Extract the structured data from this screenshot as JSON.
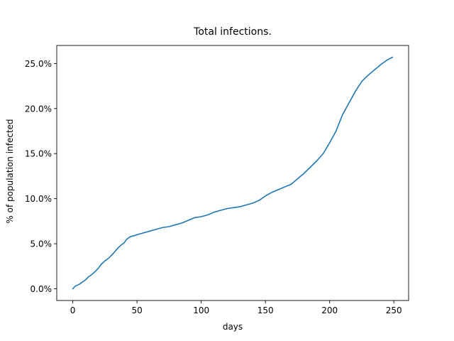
{
  "chart_data": {
    "type": "line",
    "title": "Total infections.",
    "xlabel": "days",
    "ylabel": "% of population infected",
    "xlim": [
      -12.5,
      261.5
    ],
    "ylim": [
      -1.3,
      27.0
    ],
    "xticks": [
      0,
      50,
      100,
      150,
      200,
      250
    ],
    "xtick_labels": [
      "0",
      "50",
      "100",
      "150",
      "200",
      "250"
    ],
    "yticks": [
      0,
      5,
      10,
      15,
      20,
      25
    ],
    "ytick_labels": [
      "0.0%",
      "5.0%",
      "10.0%",
      "15.0%",
      "20.0%",
      "25.0%"
    ],
    "grid": false,
    "legend": false,
    "series": [
      {
        "color": "#1f77b4",
        "x": [
          0,
          2,
          5,
          8,
          10,
          12,
          15,
          18,
          20,
          22,
          25,
          28,
          30,
          32,
          35,
          38,
          40,
          42,
          45,
          48,
          50,
          55,
          60,
          65,
          70,
          75,
          80,
          85,
          90,
          95,
          100,
          105,
          110,
          115,
          120,
          125,
          130,
          135,
          140,
          145,
          150,
          155,
          160,
          165,
          170,
          175,
          180,
          185,
          190,
          195,
          200,
          205,
          210,
          215,
          220,
          225,
          230,
          235,
          240,
          245,
          249
        ],
        "y": [
          0.0,
          0.3,
          0.5,
          0.8,
          1.0,
          1.3,
          1.6,
          2.0,
          2.3,
          2.7,
          3.1,
          3.4,
          3.7,
          4.0,
          4.5,
          4.9,
          5.1,
          5.5,
          5.8,
          5.9,
          6.0,
          6.2,
          6.4,
          6.6,
          6.8,
          6.9,
          7.1,
          7.3,
          7.6,
          7.9,
          8.0,
          8.2,
          8.5,
          8.7,
          8.9,
          9.0,
          9.1,
          9.3,
          9.5,
          9.8,
          10.3,
          10.7,
          11.0,
          11.3,
          11.6,
          12.2,
          12.8,
          13.5,
          14.2,
          15.0,
          16.2,
          17.5,
          19.3,
          20.6,
          21.9,
          23.0,
          23.7,
          24.3,
          24.9,
          25.4,
          25.7
        ]
      }
    ]
  }
}
